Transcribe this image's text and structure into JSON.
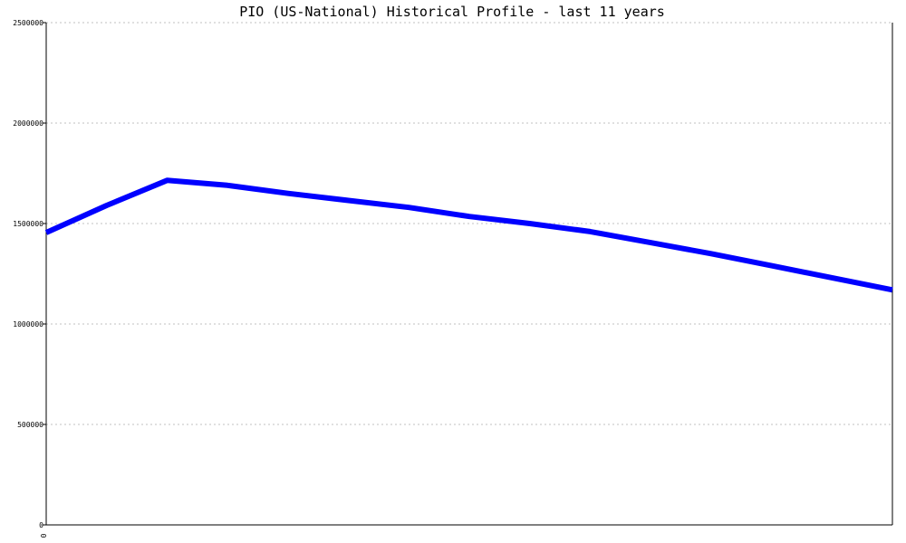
{
  "chart_data": {
    "type": "line",
    "title": "PIO (US-National) Historical Profile - last 11 years",
    "xlabel": "",
    "ylabel": "",
    "ylim": [
      0,
      2500000
    ],
    "y_ticks": [
      0,
      500000,
      1000000,
      1500000,
      2000000,
      2500000
    ],
    "y_tick_labels": [
      "0",
      "500000",
      "1000000",
      "1500000",
      "2000000",
      "2500000"
    ],
    "x_tick_labels": [
      "0"
    ],
    "grid": true,
    "legend": "none",
    "colors": {
      "line": "#0000ff",
      "grid": "#c0c0c0",
      "axis": "#000000"
    },
    "series": [
      {
        "values": [
          1455000,
          1590000,
          1715000,
          1690000,
          1650000,
          1615000,
          1580000,
          1535000,
          1500000,
          1460000,
          1405000,
          1350000,
          1290000,
          1230000,
          1170000
        ]
      }
    ]
  }
}
